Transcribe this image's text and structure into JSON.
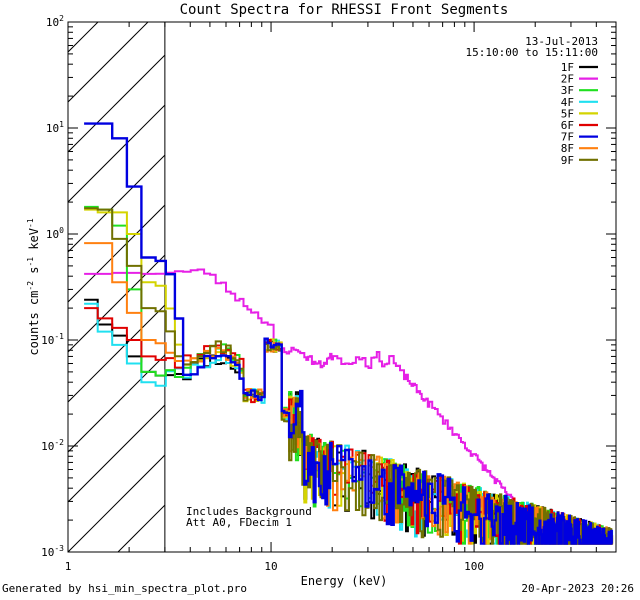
{
  "chart_data": {
    "type": "line",
    "title": "Count Spectra for RHESSI Front Segments",
    "xlabel": "Energy (keV)",
    "ylabel": "counts cm^-2 s^-1 keV^-1",
    "ylabel_parts": {
      "base": "counts cm",
      "e1": "-2",
      "mid1": " s",
      "e2": "-1",
      "mid2": " keV",
      "e3": "-1"
    },
    "x_scale": "log",
    "y_scale": "log",
    "xlim": [
      1,
      500
    ],
    "ylim": [
      0.001,
      100
    ],
    "x_ticks": [
      {
        "value": 1,
        "label": "1"
      },
      {
        "value": 10,
        "label": "10"
      },
      {
        "value": 100,
        "label": "100"
      }
    ],
    "y_ticks": [
      {
        "value": 0.001,
        "base": "10",
        "exp": "-3"
      },
      {
        "value": 0.01,
        "base": "10",
        "exp": "-2"
      },
      {
        "value": 0.1,
        "base": "10",
        "exp": "-1"
      },
      {
        "value": 1,
        "base": "10",
        "exp": "0"
      },
      {
        "value": 10,
        "base": "10",
        "exp": "1"
      },
      {
        "value": 100,
        "base": "10",
        "exp": "2"
      }
    ],
    "hatch_region_x": [
      1,
      3
    ],
    "date": "13-Jul-2013",
    "time_range": "15:10:00 to 15:11:00",
    "annotations": [
      "Includes Background",
      "Att A0, FDecim 1"
    ],
    "series": [
      {
        "name": "1F",
        "color": "#000000",
        "low": [
          0.24,
          0.14,
          0.11,
          0.07,
          0.05
        ],
        "seed": 11
      },
      {
        "name": "2F",
        "color": "#e620e6",
        "low": [
          0.42,
          0.42,
          0.43,
          0.43,
          0.42
        ],
        "seed": 23
      },
      {
        "name": "3F",
        "color": "#20e020",
        "low": [
          1.8,
          1.7,
          1.2,
          0.3,
          0.05
        ],
        "seed": 37
      },
      {
        "name": "4F",
        "color": "#20e0f0",
        "low": [
          0.22,
          0.12,
          0.09,
          0.06,
          0.04
        ],
        "seed": 41
      },
      {
        "name": "5F",
        "color": "#d4d400",
        "low": [
          1.7,
          1.6,
          1.6,
          1.0,
          0.35
        ],
        "seed": 53
      },
      {
        "name": "6F",
        "color": "#e00000",
        "low": [
          0.2,
          0.16,
          0.13,
          0.1,
          0.07
        ],
        "seed": 61
      },
      {
        "name": "7F",
        "color": "#0000e0",
        "low": [
          11,
          11,
          8,
          2.8,
          0.6
        ],
        "seed": 73
      },
      {
        "name": "8F",
        "color": "#ff8010",
        "low": [
          0.82,
          0.82,
          0.35,
          0.18,
          0.1
        ],
        "seed": 89
      },
      {
        "name": "9F",
        "color": "#707000",
        "low": [
          1.75,
          1.7,
          0.9,
          0.5,
          0.2
        ],
        "seed": 97
      }
    ],
    "low_energy_bins_keV": [
      1.2,
      1.4,
      1.65,
      1.95,
      2.3,
      2.7
    ]
  },
  "footer": {
    "generated_by": "Generated by hsi_min_spectra_plot.pro",
    "timestamp": "20-Apr-2023 20:26"
  }
}
